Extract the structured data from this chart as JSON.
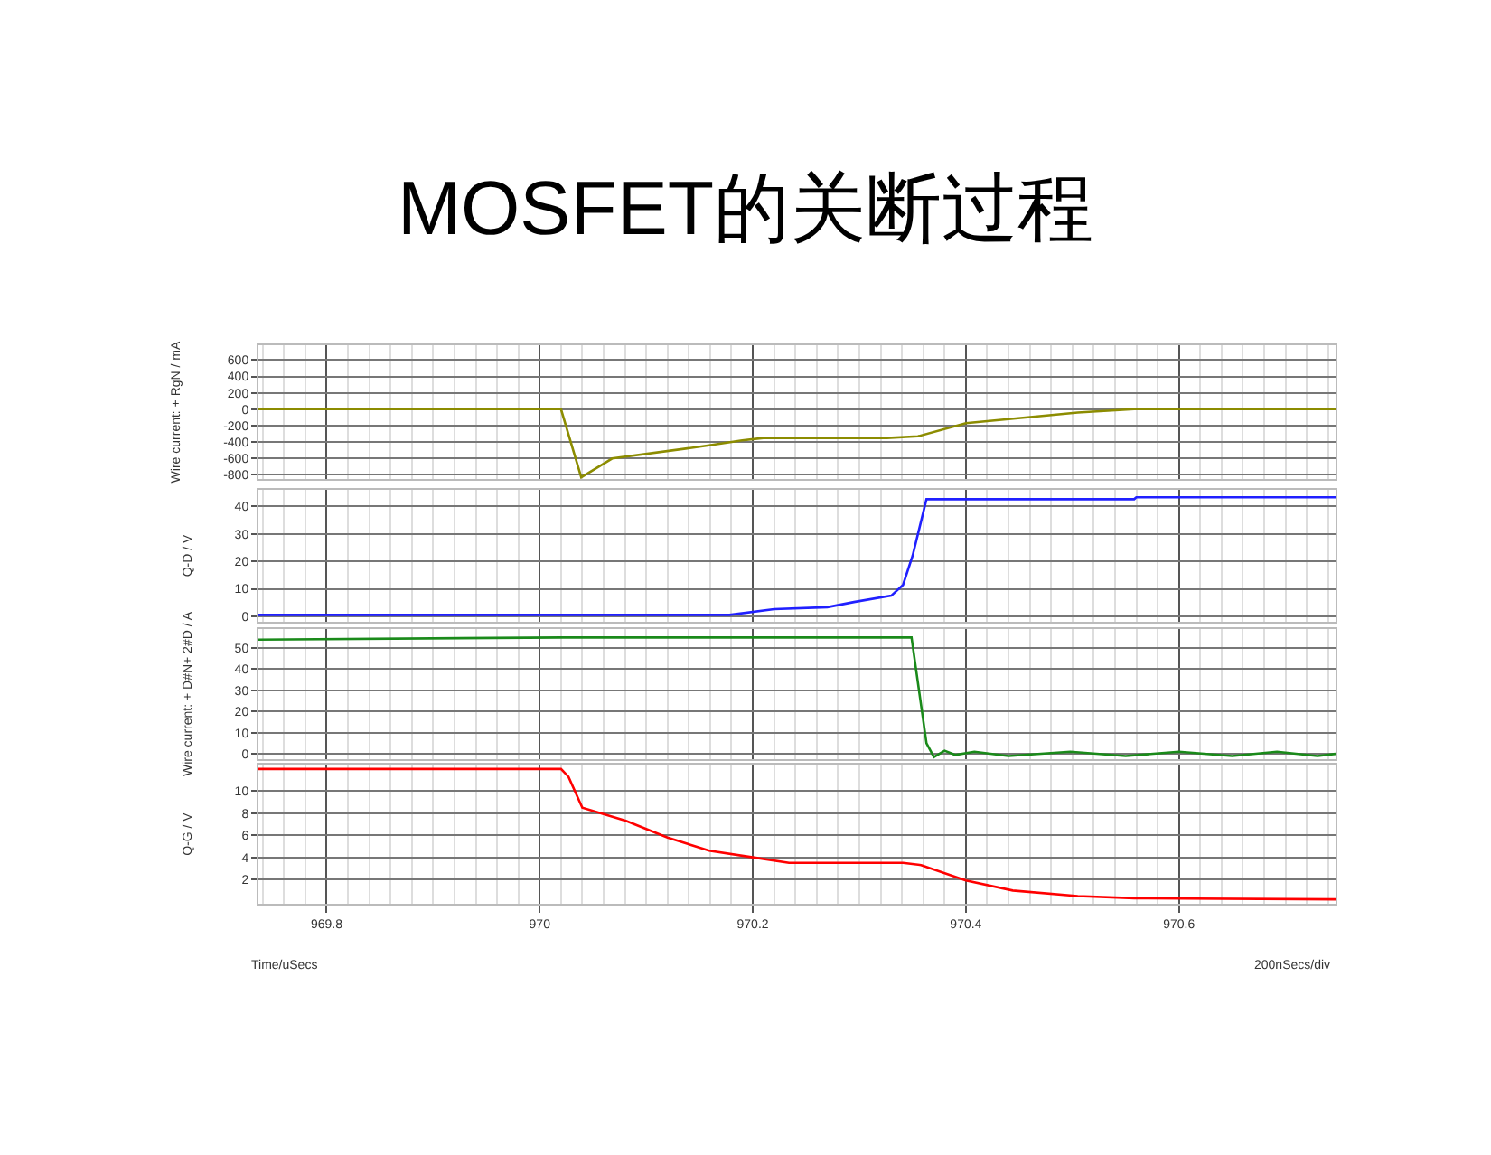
{
  "chart_data": [
    {
      "type": "line",
      "title": "MOSFET的关断过程",
      "ylabel": "Wire current: + RgN / mA",
      "xlim": [
        969.736,
        970.747
      ],
      "xticks": [
        969.8,
        970,
        970.2,
        970.4,
        970.6
      ],
      "ylim": [
        -850,
        780
      ],
      "yticks": [
        -800,
        -600,
        -400,
        -200,
        0,
        200,
        400,
        600
      ],
      "grid": true,
      "tick_labels": "y",
      "series": [
        {
          "color": "#8c8c00",
          "x": [
            969.736,
            970.02,
            970.039,
            970.068,
            970.137,
            970.159,
            970.19,
            970.21,
            970.326,
            970.355,
            970.4,
            970.505,
            970.558,
            970.747
          ],
          "values": [
            0,
            0,
            -830,
            -600,
            -480,
            -440,
            -380,
            -350,
            -350,
            -330,
            -170,
            -40,
            0,
            0
          ]
        }
      ]
    },
    {
      "type": "line",
      "ylabel": "Q-D / V",
      "xlim": [
        969.736,
        970.747
      ],
      "xticks": [
        969.8,
        970,
        970.2,
        970.4,
        970.6
      ],
      "ylim": [
        -2,
        46
      ],
      "yticks": [
        0,
        10,
        20,
        30,
        40
      ],
      "grid": true,
      "tick_labels": "y",
      "series": [
        {
          "color": "#2020ff",
          "x": [
            969.736,
            970.178,
            970.22,
            970.27,
            970.295,
            970.33,
            970.341,
            970.35,
            970.363,
            970.558,
            970.56,
            970.747
          ],
          "values": [
            0.5,
            0.5,
            2.6,
            3.3,
            5.2,
            7.5,
            11.4,
            22,
            42.6,
            42.6,
            43.3,
            43.3
          ]
        }
      ]
    },
    {
      "type": "line",
      "ylabel": "Wire current: + D#N+ 2#D / A",
      "xlim": [
        969.736,
        970.747
      ],
      "xticks": [
        969.8,
        970,
        970.2,
        970.4,
        970.6
      ],
      "ylim": [
        -2.5,
        59
      ],
      "yticks": [
        0,
        10,
        20,
        30,
        40,
        50
      ],
      "grid": true,
      "tick_labels": "y",
      "series": [
        {
          "color": "#1a8a1a",
          "x": [
            969.736,
            970.02,
            970.349,
            970.363,
            970.37,
            970.38,
            970.39,
            970.408,
            970.44,
            970.498,
            970.55,
            970.6,
            970.65,
            970.692,
            970.73,
            970.747
          ],
          "values": [
            54,
            55,
            55,
            5,
            -1.5,
            1.5,
            -0.5,
            1,
            -1,
            1,
            -1,
            1,
            -1,
            1,
            -1,
            0
          ]
        }
      ]
    },
    {
      "type": "line",
      "ylabel": "Q-G / V",
      "xlabel": "Time/uSecs",
      "xlim": [
        969.736,
        970.747
      ],
      "xticks": [
        969.8,
        970,
        970.2,
        970.4,
        970.6
      ],
      "ylim": [
        -0.2,
        12.4
      ],
      "yticks": [
        2,
        4,
        6,
        8,
        10
      ],
      "grid": true,
      "annotations": [
        "200nSecs/div"
      ],
      "series": [
        {
          "color": "#ff0000",
          "x": [
            969.736,
            970.02,
            970.027,
            970.04,
            970.081,
            970.12,
            970.159,
            970.2,
            970.234,
            970.341,
            970.358,
            970.4,
            970.444,
            970.505,
            970.558,
            970.747
          ],
          "values": [
            12,
            12,
            11.3,
            8.5,
            7.3,
            5.8,
            4.6,
            4.0,
            3.5,
            3.5,
            3.3,
            1.9,
            1.0,
            0.5,
            0.3,
            0.2
          ]
        }
      ]
    }
  ]
}
